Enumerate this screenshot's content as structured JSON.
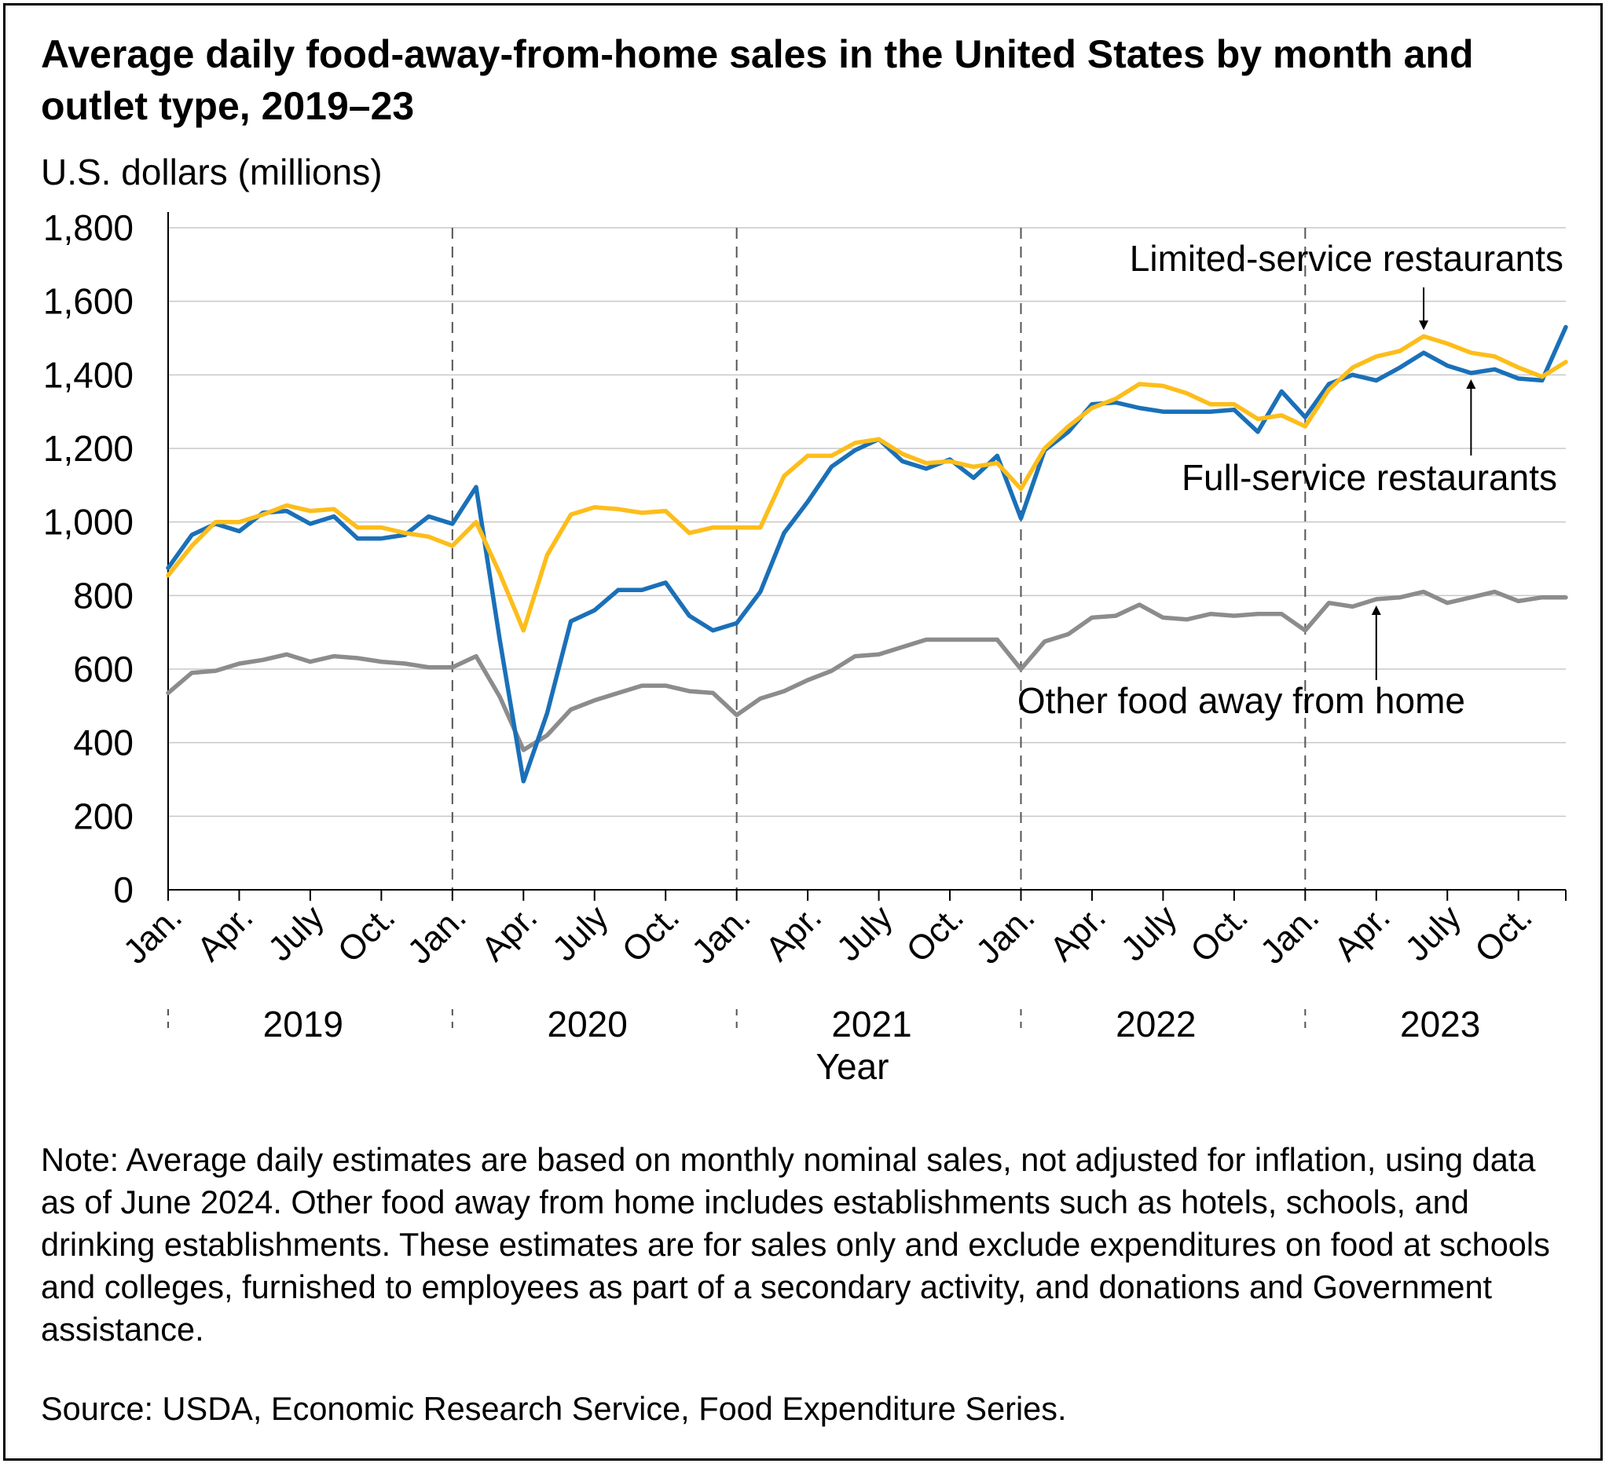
{
  "title": "Average daily food-away-from-home sales in the United States by month and outlet type, 2019–23",
  "note": "Note: Average daily estimates are based on monthly nominal sales, not adjusted for inflation, using data as of June 2024. Other food away from home includes establishments such as hotels, schools, and drinking establishments. These estimates are for sales only and exclude expenditures on food at schools and colleges, furnished to employees as part of a secondary activity, and donations and Government assistance.",
  "source": "Source: USDA, Economic Research Service, Food Expenditure Series.",
  "chart_data": {
    "type": "line",
    "title": "Average daily food-away-from-home sales in the United States by month and outlet type, 2019–23",
    "ylabel": "U.S. dollars (millions)",
    "xlabel": "Year",
    "ylim": [
      0,
      1800
    ],
    "yticks": [
      0,
      200,
      400,
      600,
      800,
      1000,
      1200,
      1400,
      1600,
      1800
    ],
    "ytick_labels": [
      "0",
      "200",
      "400",
      "600",
      "800",
      "1,000",
      "1,200",
      "1,400",
      "1,600",
      "1,800"
    ],
    "x_month_labels": [
      "Jan.",
      "Apr.",
      "July",
      "Oct."
    ],
    "years": [
      "2019",
      "2020",
      "2021",
      "2022",
      "2023"
    ],
    "grid": true,
    "x": [
      "2019-01",
      "2019-02",
      "2019-03",
      "2019-04",
      "2019-05",
      "2019-06",
      "2019-07",
      "2019-08",
      "2019-09",
      "2019-10",
      "2019-11",
      "2019-12",
      "2020-01",
      "2020-02",
      "2020-03",
      "2020-04",
      "2020-05",
      "2020-06",
      "2020-07",
      "2020-08",
      "2020-09",
      "2020-10",
      "2020-11",
      "2020-12",
      "2021-01",
      "2021-02",
      "2021-03",
      "2021-04",
      "2021-05",
      "2021-06",
      "2021-07",
      "2021-08",
      "2021-09",
      "2021-10",
      "2021-11",
      "2021-12",
      "2022-01",
      "2022-02",
      "2022-03",
      "2022-04",
      "2022-05",
      "2022-06",
      "2022-07",
      "2022-08",
      "2022-09",
      "2022-10",
      "2022-11",
      "2022-12",
      "2023-01",
      "2023-02",
      "2023-03",
      "2023-04",
      "2023-05",
      "2023-06",
      "2023-07",
      "2023-08",
      "2023-09",
      "2023-10",
      "2023-11",
      "2023-12"
    ],
    "series": [
      {
        "name": "Full-service restaurants",
        "color": "#1a70b8",
        "values": [
          875,
          965,
          995,
          975,
          1025,
          1030,
          995,
          1015,
          955,
          955,
          965,
          1015,
          995,
          1095,
          680,
          295,
          480,
          730,
          760,
          815,
          815,
          835,
          745,
          705,
          725,
          810,
          970,
          1055,
          1150,
          1195,
          1225,
          1165,
          1145,
          1170,
          1120,
          1180,
          1010,
          1195,
          1245,
          1320,
          1325,
          1310,
          1300,
          1300,
          1300,
          1305,
          1245,
          1355,
          1285,
          1375,
          1400,
          1385,
          1420,
          1460,
          1425,
          1405,
          1415,
          1390,
          1385,
          1530
        ]
      },
      {
        "name": "Limited-service restaurants",
        "color": "#fdbd1b",
        "values": [
          855,
          935,
          1000,
          1000,
          1020,
          1045,
          1030,
          1035,
          985,
          985,
          970,
          960,
          935,
          1000,
          860,
          705,
          910,
          1020,
          1040,
          1035,
          1025,
          1030,
          970,
          985,
          985,
          985,
          1125,
          1180,
          1180,
          1215,
          1225,
          1185,
          1160,
          1165,
          1150,
          1160,
          1090,
          1200,
          1260,
          1310,
          1335,
          1375,
          1370,
          1350,
          1320,
          1320,
          1280,
          1290,
          1260,
          1360,
          1420,
          1450,
          1465,
          1505,
          1485,
          1460,
          1450,
          1420,
          1395,
          1435
        ]
      },
      {
        "name": "Other food away from home",
        "color": "#8c8c8c",
        "values": [
          535,
          590,
          595,
          615,
          625,
          640,
          620,
          635,
          630,
          620,
          615,
          605,
          605,
          635,
          525,
          380,
          420,
          490,
          515,
          535,
          555,
          555,
          540,
          535,
          475,
          520,
          540,
          570,
          595,
          635,
          640,
          660,
          680,
          680,
          680,
          680,
          600,
          675,
          695,
          740,
          745,
          775,
          740,
          735,
          750,
          745,
          750,
          750,
          705,
          780,
          770,
          790,
          795,
          810,
          780,
          795,
          810,
          785,
          795,
          795
        ]
      }
    ],
    "annotations": [
      {
        "text": "Limited-service restaurants",
        "series": "Limited-service restaurants",
        "x": "2023-06"
      },
      {
        "text": "Full-service restaurants",
        "series": "Full-service restaurants",
        "x": "2023-08"
      },
      {
        "text": "Other food away from home",
        "series": "Other food away from home",
        "x": "2023-04"
      }
    ]
  }
}
